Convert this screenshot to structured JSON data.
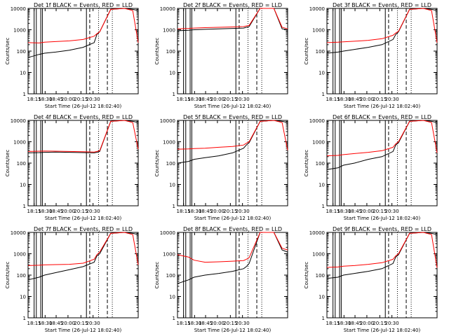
{
  "colors": {
    "events": "#000000",
    "lld": "#ff0000",
    "axes": "#000000",
    "background": "#ffffff"
  },
  "shared": {
    "ylabel": "Counts/sec",
    "xlabel": "Start Time (26-Jul-12 18:02:40)",
    "xticks": [
      "18:15",
      "18:30",
      "18:45",
      "20:00",
      "20:15",
      "20:30"
    ],
    "yticks": [
      "1",
      "10",
      "100",
      "1000",
      "10000"
    ],
    "ylim": [
      1,
      10000
    ],
    "y_scale": "log"
  },
  "chart_data": [
    {
      "type": "line",
      "title": "Det 1f BLACK = Events, RED = LLD",
      "series": [
        {
          "name": "Events",
          "x": [
            0,
            4,
            6,
            10,
            15,
            20,
            24,
            25,
            26,
            30,
            35,
            38,
            40
          ],
          "y": [
            50,
            70,
            80,
            90,
            110,
            150,
            250,
            600,
            800,
            9000,
            10000,
            9000,
            8000
          ]
        },
        {
          "name": "LLD",
          "x": [
            0,
            4,
            6,
            10,
            15,
            20,
            24,
            25,
            26,
            30,
            35,
            38,
            40
          ],
          "y": [
            250,
            240,
            260,
            280,
            300,
            350,
            500,
            650,
            800,
            9000,
            10000,
            8000,
            250
          ]
        }
      ]
    },
    {
      "type": "line",
      "title": "Det 2f BLACK = Events, RED = LLD",
      "series": [
        {
          "name": "Events",
          "x": [
            0,
            4,
            6,
            10,
            15,
            20,
            24,
            25,
            26,
            30,
            35,
            38,
            40
          ],
          "y": [
            900,
            950,
            1000,
            1050,
            1100,
            1150,
            1200,
            1300,
            1400,
            10000,
            10000,
            1100,
            1000
          ]
        },
        {
          "name": "LLD",
          "x": [
            0,
            4,
            6,
            10,
            15,
            20,
            24,
            25,
            26,
            30,
            35,
            38,
            40
          ],
          "y": [
            1100,
            1150,
            1200,
            1250,
            1300,
            1350,
            1400,
            1500,
            1600,
            10000,
            10000,
            1300,
            1100
          ]
        }
      ]
    },
    {
      "type": "line",
      "title": "Det 3f BLACK = Events, RED = LLD",
      "series": [
        {
          "name": "Events",
          "x": [
            0,
            4,
            6,
            10,
            15,
            20,
            24,
            25,
            26,
            30,
            35,
            38,
            40
          ],
          "y": [
            80,
            90,
            100,
            120,
            150,
            200,
            350,
            600,
            800,
            9000,
            10000,
            9000,
            8000
          ]
        },
        {
          "name": "LLD",
          "x": [
            0,
            4,
            6,
            10,
            15,
            20,
            24,
            25,
            26,
            30,
            35,
            38,
            40
          ],
          "y": [
            250,
            260,
            270,
            290,
            320,
            380,
            550,
            700,
            850,
            9000,
            10000,
            8000,
            250
          ]
        }
      ]
    },
    {
      "type": "line",
      "title": "Det 4f BLACK = Events, RED = LLD",
      "series": [
        {
          "name": "Events",
          "x": [
            0,
            4,
            6,
            10,
            15,
            20,
            24,
            25,
            26,
            30,
            35,
            38,
            40
          ],
          "y": [
            300,
            310,
            320,
            330,
            320,
            310,
            300,
            320,
            350,
            9000,
            10000,
            9000,
            8000
          ]
        },
        {
          "name": "LLD",
          "x": [
            0,
            4,
            6,
            10,
            15,
            20,
            24,
            25,
            26,
            30,
            35,
            38,
            40
          ],
          "y": [
            350,
            360,
            370,
            360,
            350,
            340,
            330,
            350,
            380,
            9000,
            10000,
            8000,
            450
          ]
        }
      ]
    },
    {
      "type": "line",
      "title": "Det 5f BLACK = Events, RED = LLD",
      "series": [
        {
          "name": "Events",
          "x": [
            0,
            4,
            6,
            10,
            15,
            20,
            24,
            25,
            26,
            30,
            35,
            38,
            40
          ],
          "y": [
            100,
            120,
            150,
            180,
            220,
            300,
            500,
            700,
            900,
            9000,
            10000,
            9000,
            8000
          ]
        },
        {
          "name": "LLD",
          "x": [
            0,
            4,
            6,
            10,
            15,
            20,
            24,
            25,
            26,
            30,
            35,
            38,
            40
          ],
          "y": [
            450,
            460,
            480,
            500,
            550,
            600,
            700,
            850,
            1000,
            9000,
            10000,
            8000,
            400
          ]
        }
      ]
    },
    {
      "type": "line",
      "title": "Det 6f BLACK = Events, RED = LLD",
      "series": [
        {
          "name": "Events",
          "x": [
            0,
            4,
            6,
            10,
            15,
            20,
            24,
            25,
            26,
            30,
            35,
            38,
            40
          ],
          "y": [
            50,
            60,
            80,
            100,
            150,
            200,
            350,
            700,
            900,
            9000,
            10000,
            9000,
            8000
          ]
        },
        {
          "name": "LLD",
          "x": [
            0,
            4,
            6,
            10,
            15,
            20,
            24,
            25,
            26,
            30,
            35,
            38,
            40
          ],
          "y": [
            220,
            230,
            250,
            280,
            320,
            380,
            550,
            800,
            1000,
            9000,
            10000,
            8000,
            300
          ]
        }
      ]
    },
    {
      "type": "line",
      "title": "Det 7f BLACK = Events, RED = LLD",
      "series": [
        {
          "name": "Events",
          "x": [
            0,
            4,
            6,
            10,
            15,
            20,
            24,
            25,
            26,
            30,
            35,
            38,
            40
          ],
          "y": [
            60,
            80,
            100,
            130,
            180,
            250,
            400,
            800,
            1000,
            9000,
            10000,
            9000,
            8000
          ]
        },
        {
          "name": "LLD",
          "x": [
            0,
            4,
            6,
            10,
            15,
            20,
            24,
            25,
            26,
            30,
            35,
            38,
            40
          ],
          "y": [
            280,
            290,
            300,
            310,
            320,
            360,
            550,
            900,
            1200,
            9000,
            10000,
            8000,
            300
          ]
        }
      ]
    },
    {
      "type": "line",
      "title": "Det 8f BLACK = Events, RED = LLD",
      "series": [
        {
          "name": "Events",
          "x": [
            0,
            4,
            6,
            10,
            15,
            20,
            24,
            25,
            26,
            30,
            35,
            38,
            40
          ],
          "y": [
            40,
            60,
            80,
            100,
            120,
            150,
            200,
            250,
            350,
            10000,
            10000,
            1500,
            1200
          ]
        },
        {
          "name": "LLD",
          "x": [
            0,
            4,
            6,
            10,
            15,
            20,
            24,
            25,
            26,
            30,
            35,
            38,
            40
          ],
          "y": [
            900,
            700,
            500,
            400,
            420,
            450,
            480,
            550,
            650,
            10000,
            10000,
            1800,
            1500
          ]
        }
      ]
    },
    {
      "type": "line",
      "title": "Det 9f BLACK = Events, RED = LLD",
      "series": [
        {
          "name": "Events",
          "x": [
            0,
            4,
            6,
            10,
            15,
            20,
            24,
            25,
            26,
            30,
            35,
            38,
            40
          ],
          "y": [
            70,
            80,
            100,
            120,
            150,
            200,
            350,
            700,
            900,
            9000,
            10000,
            9000,
            8000
          ]
        },
        {
          "name": "LLD",
          "x": [
            0,
            4,
            6,
            10,
            15,
            20,
            24,
            25,
            26,
            30,
            35,
            38,
            40
          ],
          "y": [
            230,
            240,
            260,
            280,
            320,
            380,
            550,
            800,
            1000,
            9000,
            10000,
            8000,
            220
          ]
        }
      ]
    }
  ]
}
